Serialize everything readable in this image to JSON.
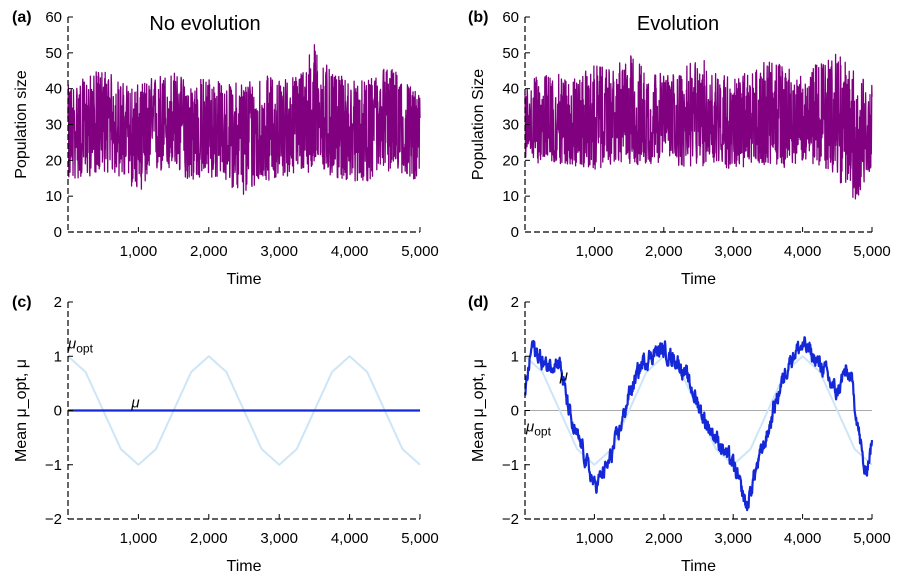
{
  "colors": {
    "population": "#800080",
    "mu": "#1428d8",
    "mu_opt": "#cde6f7",
    "zero_line": "#aaaaaa",
    "axis": "#000000"
  },
  "chart_data": [
    {
      "type": "line",
      "panel_label": "(a)",
      "title": "No evolution",
      "xlabel": "Time",
      "ylabel": "Population size",
      "xlim": [
        0,
        5000
      ],
      "ylim": [
        0,
        60
      ],
      "x_ticks": [
        "1,000",
        "2,000",
        "3,000",
        "4,000",
        "5,000"
      ],
      "y_ticks": [
        "0",
        "10",
        "20",
        "30",
        "40",
        "50",
        "60"
      ],
      "series": [
        {
          "kind": "population",
          "x": [
            0,
            250,
            500,
            750,
            1000,
            1250,
            1500,
            1750,
            2000,
            2250,
            2500,
            2750,
            3000,
            3250,
            3500,
            3750,
            4000,
            4250,
            4500,
            4750,
            5000
          ],
          "mean": [
            27,
            29,
            30,
            28,
            26,
            29,
            30,
            27,
            28,
            27,
            26,
            28,
            28,
            29,
            32,
            28,
            27,
            28,
            31,
            29,
            25
          ],
          "min": [
            14,
            15,
            17,
            15,
            11,
            16,
            17,
            14,
            15,
            14,
            9,
            14,
            15,
            16,
            17,
            15,
            14,
            14,
            17,
            16,
            14
          ],
          "max": [
            41,
            43,
            46,
            42,
            41,
            44,
            45,
            42,
            44,
            41,
            43,
            44,
            43,
            44,
            53,
            44,
            43,
            42,
            47,
            44,
            38
          ]
        }
      ]
    },
    {
      "type": "line",
      "panel_label": "(b)",
      "title": "Evolution",
      "xlabel": "Time",
      "ylabel": "Population Size",
      "xlim": [
        0,
        5000
      ],
      "ylim": [
        0,
        60
      ],
      "x_ticks": [
        "1,000",
        "2,000",
        "3,000",
        "4,000",
        "5,000"
      ],
      "y_ticks": [
        "0",
        "10",
        "20",
        "30",
        "40",
        "50",
        "60"
      ],
      "series": [
        {
          "kind": "population",
          "x": [
            0,
            250,
            500,
            750,
            1000,
            1250,
            1500,
            1750,
            2000,
            2250,
            2500,
            2750,
            3000,
            3250,
            3500,
            3750,
            4000,
            4250,
            4500,
            4750,
            5000
          ],
          "mean": [
            30,
            30,
            31,
            30,
            29,
            30,
            31,
            30,
            31,
            30,
            30,
            31,
            30,
            30,
            31,
            30,
            31,
            30,
            28,
            27,
            29
          ],
          "min": [
            20,
            19,
            19,
            18,
            17,
            19,
            19,
            18,
            20,
            18,
            18,
            19,
            17,
            18,
            19,
            18,
            20,
            18,
            15,
            8,
            18
          ],
          "max": [
            42,
            44,
            44,
            43,
            47,
            45,
            50,
            46,
            44,
            45,
            49,
            46,
            43,
            45,
            48,
            47,
            43,
            48,
            50,
            45,
            41
          ]
        }
      ]
    },
    {
      "type": "line",
      "panel_label": "(c)",
      "title": "",
      "xlabel": "Time",
      "ylabel": "Mean μ_opt, μ",
      "xlim": [
        0,
        5000
      ],
      "ylim": [
        -2,
        2
      ],
      "x_ticks": [
        "1,000",
        "2,000",
        "3,000",
        "4,000",
        "5,000"
      ],
      "y_ticks": [
        "−2",
        "−1",
        "0",
        "1",
        "2"
      ],
      "annotations": {
        "mu_opt_base": "μ",
        "mu_opt_sub": "opt",
        "mu": "μ"
      },
      "series": [
        {
          "kind": "mu_opt",
          "x": [
            0,
            250,
            500,
            750,
            1000,
            1250,
            1500,
            1750,
            2000,
            2250,
            2500,
            2750,
            3000,
            3250,
            3500,
            3750,
            4000,
            4250,
            4500,
            4750,
            5000
          ],
          "y": [
            1.0,
            0.71,
            0.0,
            -0.71,
            -1.0,
            -0.71,
            0.0,
            0.71,
            1.0,
            0.71,
            0.0,
            -0.71,
            -1.0,
            -0.71,
            0.0,
            0.71,
            1.0,
            0.71,
            0.0,
            -0.71,
            -1.0
          ]
        },
        {
          "kind": "mu",
          "x": [
            0,
            5000
          ],
          "y": [
            0,
            0
          ]
        }
      ]
    },
    {
      "type": "line",
      "panel_label": "(d)",
      "title": "",
      "xlabel": "Time",
      "ylabel": "Mean μ_opt, μ",
      "xlim": [
        0,
        5000
      ],
      "ylim": [
        -2,
        2
      ],
      "x_ticks": [
        "1,000",
        "2,000",
        "3,000",
        "4,000",
        "5,000"
      ],
      "y_ticks": [
        "−2",
        "−1",
        "0",
        "1",
        "2"
      ],
      "annotations": {
        "mu_opt_base": "μ",
        "mu_opt_sub": "opt",
        "mu": "μ"
      },
      "series": [
        {
          "kind": "mu_opt",
          "x": [
            0,
            250,
            500,
            750,
            1000,
            1250,
            1500,
            1750,
            2000,
            2250,
            2500,
            2750,
            3000,
            3250,
            3500,
            3750,
            4000,
            4250,
            4500,
            4750,
            5000
          ],
          "y": [
            1.0,
            0.71,
            0.0,
            -0.71,
            -1.0,
            -0.71,
            0.0,
            0.71,
            1.0,
            0.71,
            0.0,
            -0.71,
            -1.0,
            -0.71,
            0.0,
            0.71,
            1.0,
            0.71,
            0.0,
            -0.71,
            -1.0
          ]
        },
        {
          "kind": "mu",
          "x": [
            0,
            100,
            200,
            300,
            400,
            500,
            600,
            700,
            800,
            900,
            1000,
            1100,
            1200,
            1300,
            1400,
            1500,
            1600,
            1700,
            1800,
            1900,
            2000,
            2100,
            2200,
            2300,
            2400,
            2500,
            2600,
            2700,
            2800,
            2900,
            3000,
            3100,
            3200,
            3300,
            3400,
            3500,
            3600,
            3700,
            3800,
            3900,
            4000,
            4100,
            4200,
            4300,
            4400,
            4500,
            4600,
            4700,
            4800,
            4900,
            5000
          ],
          "y": [
            0.3,
            1.2,
            1.0,
            0.8,
            0.9,
            0.9,
            0.2,
            -0.4,
            -0.6,
            -1.0,
            -1.4,
            -1.2,
            -1.0,
            -0.6,
            -0.2,
            0.3,
            0.6,
            0.9,
            1.0,
            1.1,
            1.1,
            1.0,
            0.9,
            0.7,
            0.4,
            0.1,
            -0.2,
            -0.4,
            -0.6,
            -0.8,
            -1.0,
            -1.4,
            -1.8,
            -1.2,
            -0.8,
            -0.4,
            0.1,
            0.5,
            0.9,
            1.1,
            1.2,
            1.1,
            0.9,
            0.8,
            0.5,
            0.3,
            0.7,
            0.6,
            -0.3,
            -1.2,
            -0.6
          ]
        }
      ]
    }
  ]
}
